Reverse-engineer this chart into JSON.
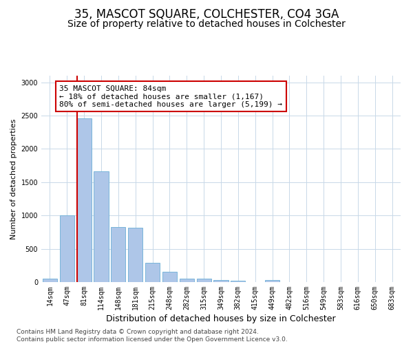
{
  "title": "35, MASCOT SQUARE, COLCHESTER, CO4 3GA",
  "subtitle": "Size of property relative to detached houses in Colchester",
  "xlabel": "Distribution of detached houses by size in Colchester",
  "ylabel": "Number of detached properties",
  "categories": [
    "14sqm",
    "47sqm",
    "81sqm",
    "114sqm",
    "148sqm",
    "181sqm",
    "215sqm",
    "248sqm",
    "282sqm",
    "315sqm",
    "349sqm",
    "382sqm",
    "415sqm",
    "449sqm",
    "482sqm",
    "516sqm",
    "549sqm",
    "583sqm",
    "616sqm",
    "650sqm",
    "683sqm"
  ],
  "values": [
    55,
    1000,
    2460,
    1660,
    830,
    820,
    290,
    150,
    55,
    50,
    35,
    20,
    0,
    30,
    0,
    0,
    0,
    0,
    0,
    0,
    0
  ],
  "bar_color": "#aec6e8",
  "bar_edgecolor": "#6aaed6",
  "vline_color": "#cc0000",
  "annotation_text": "35 MASCOT SQUARE: 84sqm\n← 18% of detached houses are smaller (1,167)\n80% of semi-detached houses are larger (5,199) →",
  "annotation_box_color": "#ffffff",
  "annotation_box_edgecolor": "#cc0000",
  "footnote": "Contains HM Land Registry data © Crown copyright and database right 2024.\nContains public sector information licensed under the Open Government Licence v3.0.",
  "ylim": [
    0,
    3100
  ],
  "yticks": [
    0,
    500,
    1000,
    1500,
    2000,
    2500,
    3000
  ],
  "title_fontsize": 12,
  "subtitle_fontsize": 10,
  "xlabel_fontsize": 9,
  "ylabel_fontsize": 8,
  "tick_fontsize": 7,
  "annotation_fontsize": 8,
  "footnote_fontsize": 6.5,
  "background_color": "#ffffff",
  "grid_color": "#c8d8e8"
}
